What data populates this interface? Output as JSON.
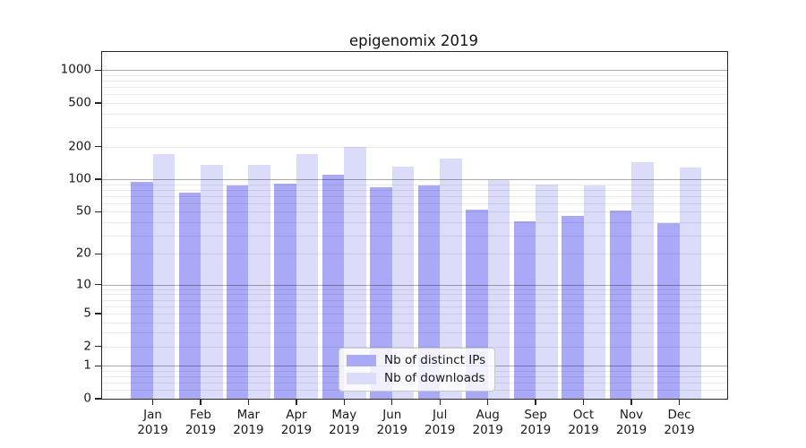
{
  "figure": {
    "background": "#ffffff"
  },
  "chart_data": {
    "type": "bar",
    "title": "epigenomix 2019",
    "categories": [
      "Jan 2019",
      "Feb 2019",
      "Mar 2019",
      "Apr 2019",
      "May 2019",
      "Jun 2019",
      "Jul 2019",
      "Aug 2019",
      "Sep 2019",
      "Oct 2019",
      "Nov 2019",
      "Dec 2019"
    ],
    "month_labels": [
      "Jan",
      "Feb",
      "Mar",
      "Apr",
      "May",
      "Jun",
      "Jul",
      "Aug",
      "Sep",
      "Oct",
      "Nov",
      "Dec"
    ],
    "x_tick_year": "2019",
    "series": [
      {
        "name": "Nb of distinct IPs",
        "color": "#a9a9f7",
        "values": [
          95,
          76,
          88,
          91,
          110,
          85,
          88,
          52,
          41,
          46,
          51,
          39
        ]
      },
      {
        "name": "Nb of downloads",
        "color": "#dbdbfa",
        "values": [
          170,
          135,
          135,
          170,
          200,
          130,
          155,
          98,
          90,
          87,
          145,
          128
        ]
      }
    ],
    "yscale": "symlog",
    "yticks": [
      0,
      1,
      2,
      5,
      10,
      20,
      50,
      100,
      200,
      500,
      1000
    ],
    "ylim": [
      0,
      1465
    ],
    "xlabel": "",
    "ylabel": "",
    "grid": "horizontal major and minor gridlines",
    "legend_position": "lower center"
  },
  "colors": {
    "bar_distinct_ips": "#a9a9f7",
    "bar_downloads": "#dbdbfa",
    "grid_major": "#aaaaaa",
    "grid_minor": "#e9e9e9",
    "spine": "#262626",
    "text": "#191919",
    "legend_border": "#c9c9c9"
  }
}
